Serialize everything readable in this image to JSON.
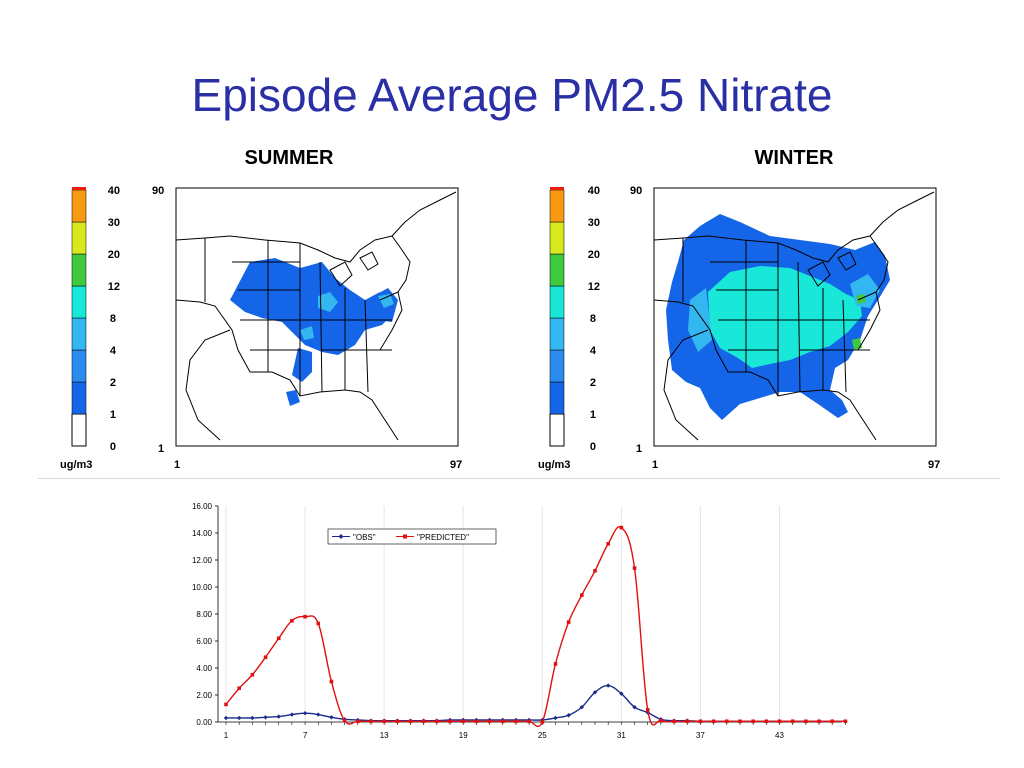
{
  "slide": {
    "title": "Episode Average PM2.5 Nitrate"
  },
  "maps": [
    {
      "id": "summer",
      "heading": "SUMMER",
      "y_top": "90",
      "y_bottom": "1",
      "x_left": "1",
      "x_right": "97"
    },
    {
      "id": "winter",
      "heading": "WINTER",
      "y_top": "90",
      "y_bottom": "1",
      "x_left": "1",
      "x_right": "97"
    }
  ],
  "legend": {
    "unit": "ug/m3",
    "levels": [
      "0",
      "1",
      "2",
      "4",
      "8",
      "12",
      "20",
      "30",
      "40"
    ],
    "colors": [
      "#ffffff",
      "#1565e8",
      "#2b8cf0",
      "#33b7f0",
      "#19e8d8",
      "#3ec93e",
      "#d8e81e",
      "#f79a12",
      "#ee1c10"
    ]
  },
  "chart_data": {
    "type": "line",
    "x": [
      1,
      2,
      3,
      4,
      5,
      6,
      7,
      8,
      9,
      10,
      11,
      12,
      13,
      14,
      15,
      16,
      17,
      18,
      19,
      20,
      21,
      22,
      23,
      24,
      25,
      26,
      27,
      28,
      29,
      30,
      31,
      32,
      33,
      34,
      35,
      36,
      37,
      38,
      39,
      40,
      41,
      42,
      43,
      44,
      45,
      46,
      47,
      48
    ],
    "x_tick_labels": [
      "1",
      "7",
      "13",
      "19",
      "25",
      "31",
      "37",
      "43"
    ],
    "y_tick_labels": [
      "0.00",
      "2.00",
      "4.00",
      "6.00",
      "8.00",
      "10.00",
      "12.00",
      "14.00",
      "16.00"
    ],
    "ylim": [
      0,
      16
    ],
    "grid": "vertical",
    "legend_position": "top-center",
    "series": [
      {
        "name": "\"OBS\"",
        "color": "#1c2b8c",
        "values": [
          0.3,
          0.3,
          0.3,
          0.35,
          0.4,
          0.55,
          0.65,
          0.55,
          0.35,
          0.2,
          0.15,
          0.1,
          0.1,
          0.1,
          0.1,
          0.1,
          0.1,
          0.15,
          0.15,
          0.15,
          0.15,
          0.15,
          0.15,
          0.15,
          0.15,
          0.3,
          0.5,
          1.1,
          2.2,
          2.7,
          2.1,
          1.1,
          0.7,
          0.2,
          0.1,
          0.1,
          0.05,
          0.05,
          0.05,
          0.05,
          0.05,
          0.05,
          0.05,
          0.05,
          0.05,
          0.05,
          0.05,
          0.05
        ]
      },
      {
        "name": "\"PREDICTED\"",
        "color": "#e01010",
        "values": [
          1.3,
          2.5,
          3.5,
          4.8,
          6.2,
          7.5,
          7.8,
          7.3,
          3.0,
          0.1,
          0.05,
          0.05,
          0.05,
          0.05,
          0.05,
          0.05,
          0.05,
          0.05,
          0.05,
          0.05,
          0.05,
          0.05,
          0.05,
          0.05,
          0.0,
          4.3,
          7.4,
          9.4,
          11.2,
          13.2,
          14.4,
          11.4,
          0.9,
          0.1,
          0.05,
          0.05,
          0.05,
          0.05,
          0.05,
          0.05,
          0.05,
          0.05,
          0.05,
          0.05,
          0.05,
          0.05,
          0.05,
          0.05
        ]
      }
    ]
  }
}
